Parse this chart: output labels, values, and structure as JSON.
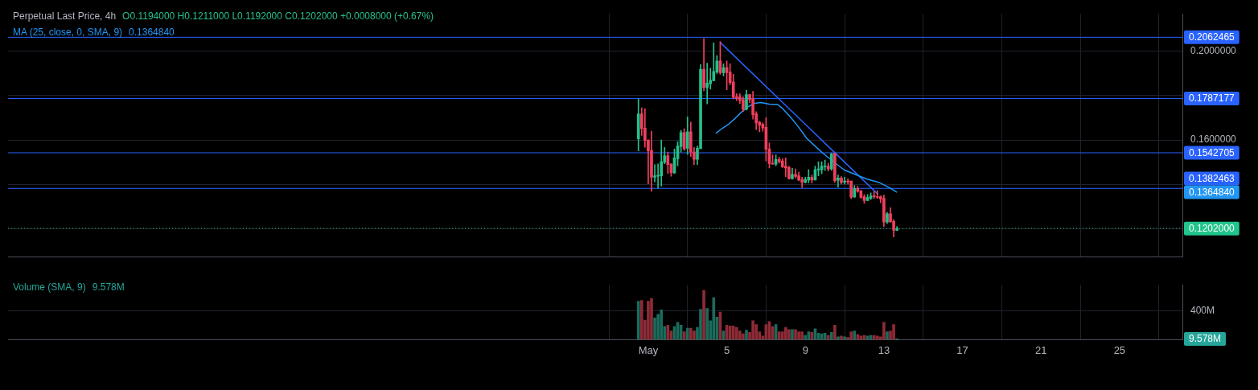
{
  "chart_data": [
    {
      "type": "candlestick",
      "title": "Perpetual Last Price, 4h",
      "annotations": [
        "O0.1194000 H0.1211000 L0.1192000 C0.1202000 +0.0008000 (+0.67%)",
        "0.1364840"
      ],
      "x": [
        0.5,
        0.667,
        0.833,
        1,
        1.167,
        1.333,
        1.5,
        1.667,
        1.833,
        2,
        2.167,
        2.333,
        2.5,
        2.667,
        2.833,
        3,
        3.167,
        3.333,
        3.5,
        3.667,
        3.833,
        4,
        4.167,
        4.333,
        4.5,
        4.667,
        4.833,
        5,
        5.167,
        5.333,
        5.5,
        5.667,
        5.833,
        6,
        6.167,
        6.333,
        6.5,
        6.667,
        6.833,
        7,
        7.167,
        7.333,
        7.5,
        7.667,
        7.833,
        8,
        8.167,
        8.333,
        8.5,
        8.667,
        8.833,
        9,
        9.167,
        9.333,
        9.5,
        9.667,
        9.833,
        10,
        10.167,
        10.333,
        10.5,
        10.667,
        10.833,
        11,
        11.167,
        11.333,
        11.5,
        11.667,
        11.833,
        12,
        12.167,
        12.333,
        12.5,
        12.667,
        12.833,
        13,
        13.167,
        13.333,
        13.5,
        13.667
      ],
      "ohlc": [
        [
          0.1605,
          0.1785,
          0.1551,
          0.1718
        ],
        [
          0.1718,
          0.1745,
          0.1621,
          0.1652
        ],
        [
          0.1654,
          0.1741,
          0.1567,
          0.1598
        ],
        [
          0.16,
          0.16,
          0.1403,
          0.1551
        ],
        [
          0.1553,
          0.164,
          0.1369,
          0.1433
        ],
        [
          0.1433,
          0.1489,
          0.1412,
          0.1439
        ],
        [
          0.1437,
          0.1493,
          0.1384,
          0.1442
        ],
        [
          0.1439,
          0.16,
          0.1393,
          0.1503
        ],
        [
          0.15,
          0.1567,
          0.1493,
          0.153
        ],
        [
          0.153,
          0.1546,
          0.145,
          0.149
        ],
        [
          0.1493,
          0.1493,
          0.1437,
          0.1453
        ],
        [
          0.1452,
          0.156,
          0.145,
          0.152
        ],
        [
          0.1516,
          0.1593,
          0.1484,
          0.1573
        ],
        [
          0.1571,
          0.1644,
          0.1546,
          0.1634
        ],
        [
          0.1634,
          0.1651,
          0.1553,
          0.156
        ],
        [
          0.1563,
          0.1704,
          0.1536,
          0.1637
        ],
        [
          0.1637,
          0.1681,
          0.1526,
          0.1546
        ],
        [
          0.1546,
          0.1567,
          0.149,
          0.1513
        ],
        [
          0.1513,
          0.1573,
          0.149,
          0.1563
        ],
        [
          0.1561,
          0.194,
          0.1561,
          0.1919
        ],
        [
          0.1919,
          0.2057,
          0.1822,
          0.1836
        ],
        [
          0.1836,
          0.1946,
          0.1763,
          0.1856
        ],
        [
          0.1853,
          0.1923,
          0.1829,
          0.1869
        ],
        [
          0.1867,
          0.2037,
          0.1867,
          0.1909
        ],
        [
          0.1906,
          0.198,
          0.1899,
          0.1956
        ],
        [
          0.1956,
          0.2044,
          0.1896,
          0.1903
        ],
        [
          0.1903,
          0.1943,
          0.1889,
          0.1926
        ],
        [
          0.1926,
          0.1956,
          0.1826,
          0.1903
        ],
        [
          0.1906,
          0.1943,
          0.1849,
          0.1859
        ],
        [
          0.1862,
          0.1896,
          0.1785,
          0.1792
        ],
        [
          0.1795,
          0.1808,
          0.1777,
          0.1788
        ],
        [
          0.1795,
          0.1808,
          0.1765,
          0.1778
        ],
        [
          0.1782,
          0.1795,
          0.1728,
          0.1738
        ],
        [
          0.1738,
          0.1825,
          0.1735,
          0.1805
        ],
        [
          0.1805,
          0.1805,
          0.1768,
          0.1782
        ],
        [
          0.1785,
          0.1819,
          0.1694,
          0.1714
        ],
        [
          0.1718,
          0.1728,
          0.1647,
          0.1677
        ],
        [
          0.1681,
          0.1684,
          0.1637,
          0.1667
        ],
        [
          0.1671,
          0.1677,
          0.164,
          0.1654
        ],
        [
          0.1657,
          0.1701,
          0.1506,
          0.1558
        ],
        [
          0.156,
          0.1587,
          0.1474,
          0.1494
        ],
        [
          0.1496,
          0.1533,
          0.1491,
          0.1491
        ],
        [
          0.1491,
          0.1533,
          0.1484,
          0.1513
        ],
        [
          0.1513,
          0.1523,
          0.1496,
          0.1503
        ],
        [
          0.1506,
          0.1517,
          0.1476,
          0.148
        ],
        [
          0.1483,
          0.152,
          0.1434,
          0.1474
        ],
        [
          0.1476,
          0.1483,
          0.1424,
          0.1426
        ],
        [
          0.1426,
          0.1473,
          0.1424,
          0.1446
        ],
        [
          0.1446,
          0.147,
          0.1429,
          0.1436
        ],
        [
          0.1439,
          0.1456,
          0.1416,
          0.142
        ],
        [
          0.1422,
          0.1433,
          0.1386,
          0.141
        ],
        [
          0.1409,
          0.1433,
          0.1407,
          0.1422
        ],
        [
          0.142,
          0.1466,
          0.1407,
          0.1433
        ],
        [
          0.1433,
          0.1443,
          0.1406,
          0.142
        ],
        [
          0.142,
          0.1483,
          0.142,
          0.1466
        ],
        [
          0.1465,
          0.1503,
          0.1439,
          0.147
        ],
        [
          0.1466,
          0.1503,
          0.1449,
          0.1483
        ],
        [
          0.148,
          0.151,
          0.1463,
          0.1483
        ],
        [
          0.1483,
          0.1496,
          0.1461,
          0.147
        ],
        [
          0.147,
          0.1541,
          0.1463,
          0.1538
        ],
        [
          0.1541,
          0.1541,
          0.1409,
          0.1416
        ],
        [
          0.1419,
          0.1443,
          0.1387,
          0.1429
        ],
        [
          0.1429,
          0.1436,
          0.1402,
          0.1409
        ],
        [
          0.141,
          0.1433,
          0.1402,
          0.1416
        ],
        [
          0.1416,
          0.1426,
          0.1402,
          0.1412
        ],
        [
          0.1416,
          0.1416,
          0.1336,
          0.1343
        ],
        [
          0.1343,
          0.1396,
          0.1343,
          0.1382
        ],
        [
          0.1382,
          0.1392,
          0.1365,
          0.1369
        ],
        [
          0.1372,
          0.1372,
          0.1338,
          0.1342
        ],
        [
          0.1345,
          0.1355,
          0.1315,
          0.1328
        ],
        [
          0.1328,
          0.1355,
          0.1328,
          0.1342
        ],
        [
          0.1338,
          0.1362,
          0.1332,
          0.1349
        ],
        [
          0.1349,
          0.1369,
          0.1338,
          0.1345
        ],
        [
          0.1345,
          0.1372,
          0.1338,
          0.1342
        ],
        [
          0.1345,
          0.1349,
          0.1318,
          0.1335
        ],
        [
          0.1338,
          0.1352,
          0.1211,
          0.1231
        ],
        [
          0.1231,
          0.1275,
          0.1225,
          0.1268
        ],
        [
          0.1268,
          0.1295,
          0.1231,
          0.1231
        ],
        [
          0.1234,
          0.1241,
          0.1164,
          0.1194
        ],
        [
          0.1194,
          0.1211,
          0.1192,
          0.1202
        ]
      ],
      "colors": [
        "#26c08a",
        "#f23f5d",
        "#f23f5d",
        "#f23f5d",
        "#f23f5d",
        "#26c08a",
        "#26c08a",
        "#26c08a",
        "#26c08a",
        "#f23f5d",
        "#f23f5d",
        "#26c08a",
        "#26c08a",
        "#26c08a",
        "#f23f5d",
        "#26c08a",
        "#f23f5d",
        "#f23f5d",
        "#26c08a",
        "#26c08a",
        "#f23f5d",
        "#26c08a",
        "#26c08a",
        "#26c08a",
        "#26c08a",
        "#f23f5d",
        "#26c08a",
        "#f23f5d",
        "#f23f5d",
        "#f23f5d",
        "#f23f5d",
        "#f23f5d",
        "#f23f5d",
        "#26c08a",
        "#f23f5d",
        "#f23f5d",
        "#f23f5d",
        "#f23f5d",
        "#f23f5d",
        "#f23f5d",
        "#f23f5d",
        "#f23f5d",
        "#26c08a",
        "#f23f5d",
        "#f23f5d",
        "#f23f5d",
        "#f23f5d",
        "#26c08a",
        "#f23f5d",
        "#f23f5d",
        "#f23f5d",
        "#26c08a",
        "#26c08a",
        "#f23f5d",
        "#26c08a",
        "#26c08a",
        "#26c08a",
        "#26c08a",
        "#f23f5d",
        "#26c08a",
        "#f23f5d",
        "#26c08a",
        "#f23f5d",
        "#26c08a",
        "#f23f5d",
        "#f23f5d",
        "#26c08a",
        "#f23f5d",
        "#f23f5d",
        "#f23f5d",
        "#26c08a",
        "#26c08a",
        "#f23f5d",
        "#f23f5d",
        "#f23f5d",
        "#f23f5d",
        "#26c08a",
        "#f23f5d",
        "#f23f5d",
        "#26c08a"
      ],
      "series": [
        {
          "type": "line",
          "name": "MA (25, close, 0, SMA, 9)",
          "color": "#2196f3",
          "x": [
            4.44,
            4.77,
            5.1,
            5.43,
            5.75,
            6.08,
            6.41,
            6.74,
            7.16,
            7.6,
            7.84,
            8.25,
            8.66,
            9.07,
            9.48,
            9.89,
            10.44,
            10.99,
            11.53,
            12.08,
            12.76,
            13.31,
            13.667
          ],
          "values": [
            0.163,
            0.1653,
            0.1672,
            0.1698,
            0.1726,
            0.175,
            0.1765,
            0.1769,
            0.1762,
            0.176,
            0.1742,
            0.1703,
            0.1658,
            0.1608,
            0.1574,
            0.1541,
            0.1502,
            0.1465,
            0.1446,
            0.1426,
            0.1409,
            0.1384,
            0.1365
          ]
        },
        {
          "type": "line",
          "color": "#2962ff",
          "x": [
            4.67,
            12.7
          ],
          "values": [
            0.2039,
            0.1356
          ]
        }
      ],
      "ref_lines": [
        {
          "axis": "y",
          "value": 0.2062465,
          "label": "0.2062465",
          "color": "#2962ff"
        },
        {
          "axis": "y",
          "value": 0.1787177,
          "label": "0.1787177",
          "color": "#2962ff"
        },
        {
          "axis": "y",
          "value": 0.1542705,
          "label": "0.1542705",
          "color": "#2962ff"
        },
        {
          "axis": "y",
          "value": 0.1382463,
          "label": "0.1382463",
          "color": "#2962ff"
        },
        {
          "axis": "y",
          "value": 0.1202,
          "label": "0.1202000",
          "color": "#22c58b",
          "line_style": "dotted"
        }
      ],
      "xlim": [
        -31.6,
        28.2
      ],
      "xticks": [
        {
          "value": 1,
          "label": null
        },
        {
          "value": 5,
          "label": null
        },
        {
          "value": 9,
          "label": null
        },
        {
          "value": 13,
          "label": null
        },
        {
          "value": 17,
          "label": null
        },
        {
          "value": 21,
          "label": null
        },
        {
          "value": 25,
          "label": null
        }
      ],
      "ylim": [
        0.1073,
        0.2168
      ],
      "yticks": [
        {
          "value": 0.12,
          "label": null
        },
        {
          "value": 0.14,
          "label": null
        },
        {
          "value": 0.16,
          "label": "0.1600000"
        },
        {
          "value": 0.18,
          "label": null
        },
        {
          "value": 0.2,
          "label": "0.2000000"
        }
      ],
      "tick_labels": "y",
      "grid": true,
      "legend": "top left"
    },
    {
      "type": "bar",
      "series": [
        {
          "name": "Volume (SMA, 9)",
          "x": [
            0.5,
            0.667,
            0.833,
            1,
            1.167,
            1.333,
            1.5,
            1.667,
            1.833,
            2,
            2.167,
            2.333,
            2.5,
            2.667,
            2.833,
            3,
            3.167,
            3.333,
            3.5,
            3.667,
            3.833,
            4,
            4.167,
            4.333,
            4.5,
            4.667,
            4.833,
            5,
            5.167,
            5.333,
            5.5,
            5.667,
            5.833,
            6,
            6.167,
            6.333,
            6.5,
            6.667,
            6.833,
            7,
            7.167,
            7.333,
            7.5,
            7.667,
            7.833,
            8,
            8.167,
            8.333,
            8.5,
            8.667,
            8.833,
            9,
            9.167,
            9.333,
            9.5,
            9.667,
            9.833,
            10,
            10.167,
            10.333,
            10.5,
            10.667,
            10.833,
            11,
            11.167,
            11.333,
            11.5,
            11.667,
            11.833,
            12,
            12.167,
            12.333,
            12.5,
            12.667,
            12.833,
            13,
            13.167,
            13.333,
            13.5,
            13.667
          ],
          "values": [
            530,
            540,
            270,
            530,
            570,
            300,
            350,
            410,
            180,
            200,
            120,
            180,
            240,
            200,
            110,
            160,
            160,
            120,
            170,
            420,
            680,
            430,
            260,
            580,
            310,
            380,
            120,
            200,
            190,
            190,
            170,
            120,
            80,
            130,
            100,
            260,
            210,
            110,
            50,
            210,
            250,
            180,
            210,
            110,
            110,
            170,
            140,
            140,
            140,
            110,
            110,
            60,
            110,
            100,
            150,
            90,
            80,
            90,
            60,
            100,
            200,
            40,
            50,
            40,
            30,
            110,
            120,
            70,
            50,
            60,
            50,
            60,
            60,
            50,
            40,
            240,
            110,
            120,
            210,
            9.578
          ],
          "colors": [
            "#1b6b5c",
            "#8e2b36",
            "#8e2b36",
            "#8e2b36",
            "#8e2b36",
            "#1b6b5c",
            "#1b6b5c",
            "#1b6b5c",
            "#1b6b5c",
            "#8e2b36",
            "#8e2b36",
            "#1b6b5c",
            "#1b6b5c",
            "#1b6b5c",
            "#8e2b36",
            "#1b6b5c",
            "#8e2b36",
            "#8e2b36",
            "#1b6b5c",
            "#1b6b5c",
            "#8e2b36",
            "#1b6b5c",
            "#1b6b5c",
            "#1b6b5c",
            "#1b6b5c",
            "#8e2b36",
            "#1b6b5c",
            "#8e2b36",
            "#8e2b36",
            "#8e2b36",
            "#8e2b36",
            "#8e2b36",
            "#8e2b36",
            "#1b6b5c",
            "#8e2b36",
            "#8e2b36",
            "#8e2b36",
            "#8e2b36",
            "#8e2b36",
            "#8e2b36",
            "#8e2b36",
            "#8e2b36",
            "#1b6b5c",
            "#8e2b36",
            "#8e2b36",
            "#8e2b36",
            "#8e2b36",
            "#1b6b5c",
            "#8e2b36",
            "#8e2b36",
            "#8e2b36",
            "#1b6b5c",
            "#1b6b5c",
            "#8e2b36",
            "#1b6b5c",
            "#1b6b5c",
            "#1b6b5c",
            "#1b6b5c",
            "#8e2b36",
            "#1b6b5c",
            "#8e2b36",
            "#1b6b5c",
            "#8e2b36",
            "#1b6b5c",
            "#8e2b36",
            "#8e2b36",
            "#1b6b5c",
            "#8e2b36",
            "#8e2b36",
            "#8e2b36",
            "#1b6b5c",
            "#1b6b5c",
            "#8e2b36",
            "#8e2b36",
            "#8e2b36",
            "#8e2b36",
            "#1b6b5c",
            "#8e2b36",
            "#8e2b36",
            "#26a69a"
          ]
        }
      ],
      "xlim": [
        -31.6,
        28.2
      ],
      "xticks": [
        {
          "value": 1,
          "label": "May"
        },
        5,
        9,
        13,
        17,
        21,
        25
      ],
      "annotations": [
        "9.578M"
      ],
      "ylim": [
        0,
        756
      ],
      "yticks": [
        {
          "value": 0,
          "label": null
        },
        {
          "value": 400,
          "label": "400M"
        }
      ],
      "grid": true,
      "legend": "top left"
    }
  ]
}
